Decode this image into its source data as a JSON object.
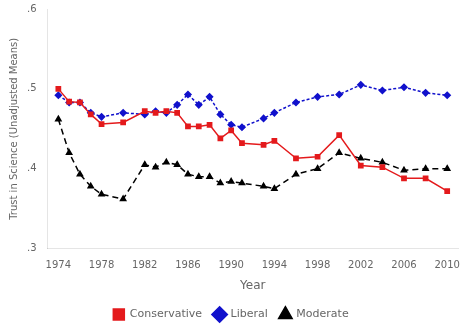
{
  "chart_data": {
    "type": "line",
    "xlabel": "Year",
    "ylabel": "Trust in Science (Unadjusted Means)",
    "x": [
      1974,
      1975,
      1976,
      1977,
      1978,
      1980,
      1982,
      1983,
      1984,
      1985,
      1986,
      1987,
      1988,
      1989,
      1990,
      1991,
      1993,
      1994,
      1996,
      1998,
      2000,
      2002,
      2004,
      2006,
      2008,
      2010
    ],
    "series": [
      {
        "name": "Conservative",
        "color": "#e41a1c",
        "marker": "square",
        "line_style": "solid",
        "values": [
          0.5,
          0.484,
          0.483,
          0.468,
          0.456,
          0.458,
          0.472,
          0.47,
          0.472,
          0.47,
          0.453,
          0.453,
          0.455,
          0.438,
          0.448,
          0.432,
          0.43,
          0.435,
          0.413,
          0.415,
          0.442,
          0.404,
          0.402,
          0.388,
          0.388,
          0.372
        ]
      },
      {
        "name": "Liberal",
        "color": "#1111cc",
        "marker": "diamond",
        "line_style": "dotted",
        "values": [
          0.492,
          0.483,
          0.483,
          0.47,
          0.465,
          0.47,
          0.468,
          0.472,
          0.47,
          0.48,
          0.493,
          0.48,
          0.49,
          0.468,
          0.455,
          0.452,
          0.463,
          0.47,
          0.483,
          0.49,
          0.493,
          0.505,
          0.498,
          0.502,
          0.495,
          0.492
        ]
      },
      {
        "name": "Moderate",
        "color": "#000000",
        "marker": "triangle",
        "line_style": "dashed",
        "values": [
          0.462,
          0.42,
          0.393,
          0.378,
          0.368,
          0.362,
          0.405,
          0.402,
          0.408,
          0.405,
          0.393,
          0.39,
          0.39,
          0.382,
          0.384,
          0.382,
          0.378,
          0.375,
          0.393,
          0.4,
          0.42,
          0.413,
          0.408,
          0.398,
          0.4,
          0.4
        ]
      }
    ],
    "xlim": [
      1973,
      2011
    ],
    "xticks": [
      1974,
      1978,
      1982,
      1986,
      1990,
      1994,
      1998,
      2002,
      2006,
      2010
    ],
    "ylim": [
      0.3,
      0.6
    ],
    "yticks": [
      {
        "value": 0.3,
        "label": ".3"
      },
      {
        "value": 0.4,
        "label": ".4"
      },
      {
        "value": 0.5,
        "label": ".5"
      },
      {
        "value": 0.6,
        "label": ".6"
      }
    ],
    "grid": false,
    "legend": "bottom"
  }
}
